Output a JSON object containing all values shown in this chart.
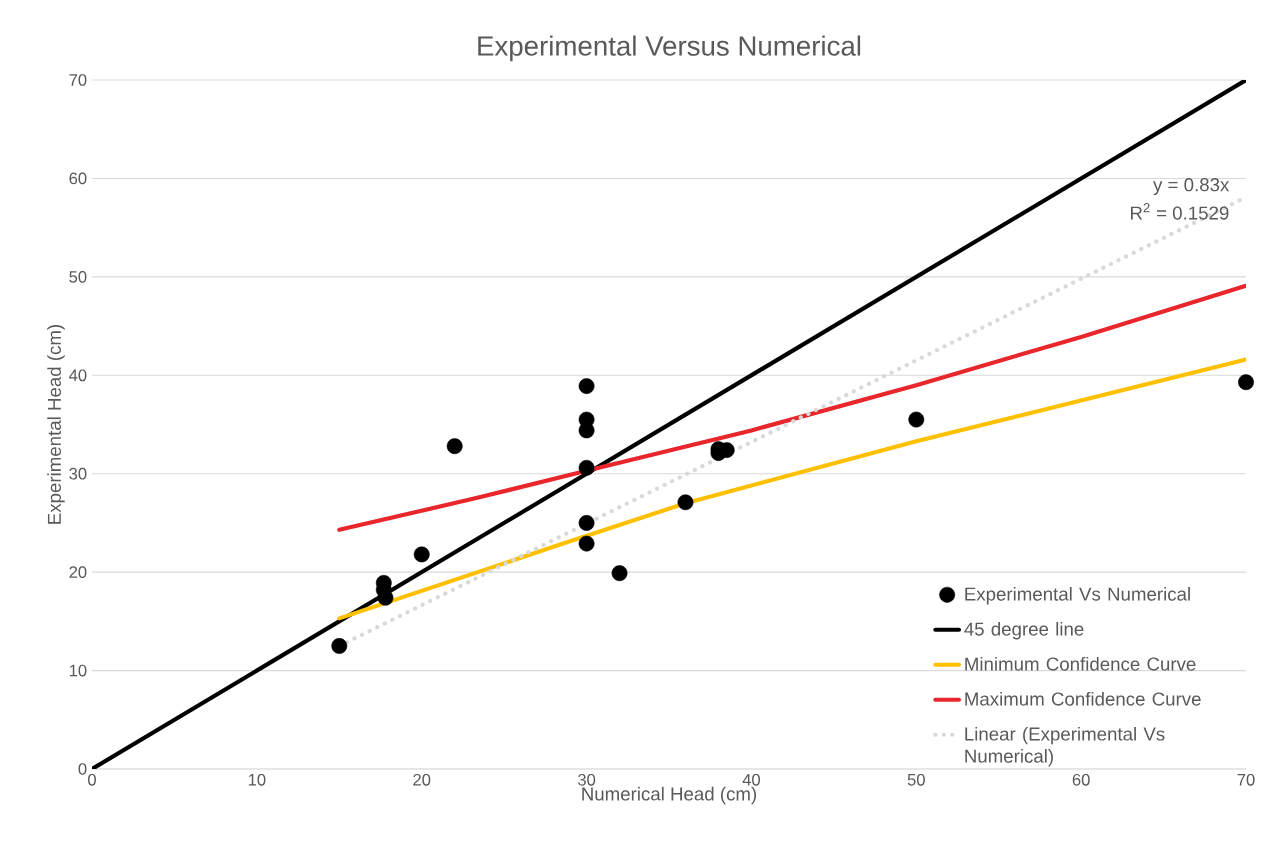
{
  "chart_data": {
    "type": "scatter",
    "title": "Experimental Versus Numerical",
    "xlabel": "Numerical Head (cm)",
    "ylabel": "Experimental Head (cm)",
    "xlim": [
      0,
      70
    ],
    "ylim": [
      0,
      70
    ],
    "xticks": [
      0,
      10,
      20,
      30,
      40,
      50,
      60,
      70
    ],
    "yticks": [
      0,
      10,
      20,
      30,
      40,
      50,
      60,
      70
    ],
    "grid": "y",
    "legend": "bottom right",
    "series": [
      {
        "name": "Experimental Vs Numerical",
        "marker": "circle",
        "color": "#000000",
        "x": [
          15,
          17.7,
          17.7,
          17.8,
          20,
          22,
          30,
          30,
          30,
          30,
          30,
          30,
          32,
          36,
          38,
          38,
          38.5,
          50,
          70
        ],
        "values": [
          12.5,
          18.9,
          18.2,
          17.4,
          21.8,
          32.8,
          38.9,
          35.5,
          34.4,
          30.6,
          25,
          22.9,
          19.9,
          27.1,
          32.1,
          32.5,
          32.4,
          35.5,
          39.3
        ]
      },
      {
        "name": "45 degree line",
        "type": "line",
        "marker": "none",
        "color": "#000000",
        "x": [
          0,
          70
        ],
        "values": [
          0,
          70
        ]
      },
      {
        "name": "Minimum Confidence Curve",
        "type": "line",
        "marker": "none",
        "color": "#ffc000",
        "x": [
          15,
          28.4,
          36,
          50,
          70
        ],
        "values": [
          15.3,
          22.8,
          27.0,
          33.3,
          41.6
        ]
      },
      {
        "name": "Maximum Confidence Curve",
        "type": "line",
        "marker": "none",
        "color": "#e8262b",
        "x": [
          15,
          23.5,
          30,
          40,
          50,
          60,
          70
        ],
        "values": [
          24.3,
          27.6,
          30.3,
          34.4,
          39.0,
          43.9,
          49.1
        ]
      },
      {
        "name": "Linear (Experimental Vs Numerical)",
        "type": "line",
        "marker": "none",
        "line_style": "dotted",
        "color": "#d9d9d9",
        "x": [
          15,
          70
        ],
        "values": [
          12.5,
          58.1
        ]
      }
    ],
    "annotations": [
      "y = 0.83x",
      "R$^{2}$ = 0.1529"
    ]
  }
}
